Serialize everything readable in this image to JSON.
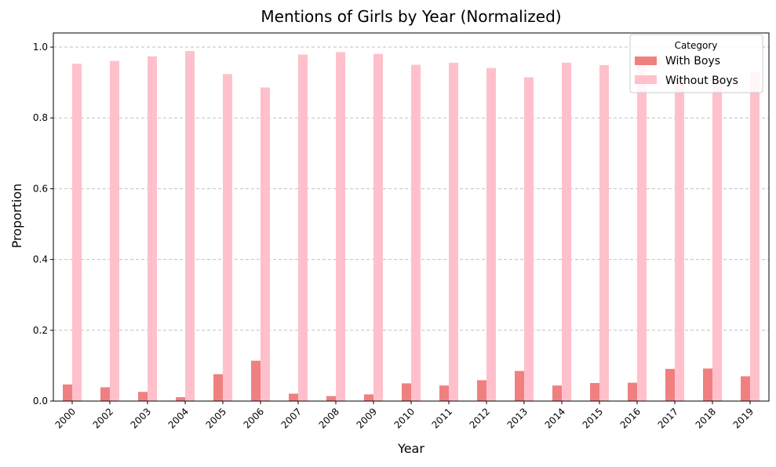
{
  "chart_data": {
    "type": "bar",
    "title": "Mentions of Girls by Year (Normalized)",
    "xlabel": "Year",
    "ylabel": "Proportion",
    "categories": [
      "2000",
      "2002",
      "2003",
      "2004",
      "2005",
      "2006",
      "2007",
      "2008",
      "2009",
      "2010",
      "2011",
      "2012",
      "2013",
      "2014",
      "2015",
      "2016",
      "2017",
      "2018",
      "2019"
    ],
    "series": [
      {
        "name": "With Boys",
        "color": "#f08080",
        "values": [
          0.047,
          0.039,
          0.026,
          0.011,
          0.076,
          0.114,
          0.021,
          0.014,
          0.019,
          0.05,
          0.044,
          0.059,
          0.085,
          0.044,
          0.051,
          0.052,
          0.091,
          0.092,
          0.07
        ]
      },
      {
        "name": "Without Boys",
        "color": "#ffc0cb",
        "values": [
          0.953,
          0.961,
          0.974,
          0.989,
          0.924,
          0.886,
          0.979,
          0.986,
          0.981,
          0.95,
          0.956,
          0.941,
          0.915,
          0.956,
          0.949,
          0.948,
          0.909,
          0.908,
          0.93
        ]
      }
    ],
    "ylim": [
      0,
      1.04
    ],
    "yticks": [
      "0.0",
      "0.2",
      "0.4",
      "0.6",
      "0.8",
      "1.0"
    ],
    "grid": "horizontal-dashed",
    "legend": {
      "title": "Category",
      "position": "top-right"
    }
  }
}
